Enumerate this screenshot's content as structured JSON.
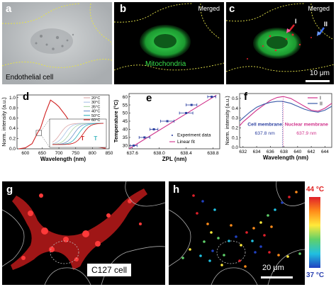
{
  "panel_a": {
    "label": "a",
    "caption": "Endothelial cell"
  },
  "panel_b": {
    "label": "b",
    "tag": "Merged",
    "annotation": "Mitochondria"
  },
  "panel_c": {
    "label": "c",
    "tag": "Merged",
    "marker_1": "I",
    "marker_2": "II",
    "scalebar": "10 μm"
  },
  "panel_d": {
    "label": "d"
  },
  "panel_e": {
    "label": "e"
  },
  "panel_f": {
    "label": "f"
  },
  "panel_g": {
    "label": "g",
    "caption": "C127 cell"
  },
  "panel_h": {
    "label": "h",
    "scalebar": "20 μm",
    "colorbar_max": "44 °C",
    "colorbar_min": "37 °C"
  },
  "chart_data": [
    {
      "panel": "d",
      "type": "line",
      "xlabel": "Wavelength (nm)",
      "ylabel": "Norm. intensity (a.u.)",
      "xlim": [
        575,
        850
      ],
      "ylim": [
        0,
        1.05
      ],
      "xticks": [
        600,
        650,
        700,
        750,
        800,
        850
      ],
      "yticks": [
        0.0,
        0.2,
        0.4,
        0.6,
        0.8,
        1.0
      ],
      "legend_position": "top-right",
      "inset_labels": [
        "T",
        "T"
      ],
      "series": [
        {
          "name": "20°C",
          "color": "#e0b0b0"
        },
        {
          "name": "30°C",
          "color": "#b0c8e8"
        },
        {
          "name": "35°C",
          "color": "#b0d8b0"
        },
        {
          "name": "40°C",
          "color": "#7a9ad0"
        },
        {
          "name": "50°C",
          "color": "#3fb8c0"
        },
        {
          "name": "60°C",
          "color": "#d02020"
        }
      ],
      "x": [
        580,
        600,
        620,
        637,
        645,
        660,
        675,
        690,
        700,
        720,
        740,
        760,
        780,
        800,
        820,
        840
      ],
      "values": [
        0.0,
        0.02,
        0.1,
        0.32,
        0.4,
        0.7,
        0.95,
        0.88,
        0.82,
        0.65,
        0.45,
        0.28,
        0.15,
        0.07,
        0.03,
        0.01
      ]
    },
    {
      "panel": "e",
      "type": "scatter",
      "xlabel": "ZPL (nm)",
      "ylabel": "Temperature (°C)",
      "xlim": [
        637.55,
        638.9
      ],
      "ylim": [
        28,
        62
      ],
      "xticks": [
        637.6,
        638.0,
        638.4,
        638.8
      ],
      "xtick_labels": [
        "637.6",
        "638.0",
        "638.4",
        "638.8"
      ],
      "yticks": [
        30,
        35,
        40,
        45,
        50,
        55,
        60
      ],
      "legend_position": "bottom-right",
      "series": [
        {
          "name": "Experiment data",
          "color": "#2b3fa0",
          "x": [
            637.62,
            637.78,
            637.92,
            638.12,
            638.4,
            638.48,
            638.78
          ],
          "y": [
            30,
            35,
            40,
            45,
            50,
            55,
            60
          ],
          "xerr": [
            0.05,
            0.08,
            0.06,
            0.1,
            0.1,
            0.08,
            0.06
          ]
        },
        {
          "name": "Linear fit",
          "color": "#d0308a",
          "x": [
            637.55,
            638.85
          ],
          "y": [
            28,
            61
          ]
        }
      ]
    },
    {
      "panel": "f",
      "type": "line",
      "xlabel": "Wavelength (nm)",
      "ylabel": "Norm. intensity (a.u.)",
      "xlim": [
        631.5,
        645
      ],
      "ylim": [
        0,
        0.55
      ],
      "xticks": [
        632,
        634,
        636,
        638,
        640,
        642,
        644
      ],
      "yticks": [
        0.0,
        0.1,
        0.2,
        0.3,
        0.4,
        0.5
      ],
      "legend_position": "top-right",
      "annotations": [
        {
          "text": "Cell membrane",
          "value": "637.8 nm",
          "color": "#2b3fa0"
        },
        {
          "text": "Nuclear membrane",
          "value": "637.9 nm",
          "color": "#d0308a"
        }
      ],
      "series": [
        {
          "name": "I",
          "color": "#d0308a",
          "x": [
            631.5,
            632,
            633,
            634,
            635,
            636,
            637,
            637.9,
            639,
            640,
            641,
            642,
            643,
            644,
            645
          ],
          "y": [
            0.22,
            0.26,
            0.32,
            0.38,
            0.43,
            0.48,
            0.51,
            0.52,
            0.5,
            0.46,
            0.42,
            0.38,
            0.37,
            0.4,
            0.45
          ]
        },
        {
          "name": "II",
          "color": "#3a5aa8",
          "x": [
            631.5,
            632,
            633,
            634,
            635,
            636,
            637,
            637.8,
            639,
            640,
            641,
            642,
            643,
            644,
            645
          ],
          "y": [
            0.27,
            0.3,
            0.36,
            0.41,
            0.44,
            0.46,
            0.47,
            0.47,
            0.45,
            0.42,
            0.39,
            0.37,
            0.36,
            0.38,
            0.42
          ]
        }
      ]
    }
  ]
}
